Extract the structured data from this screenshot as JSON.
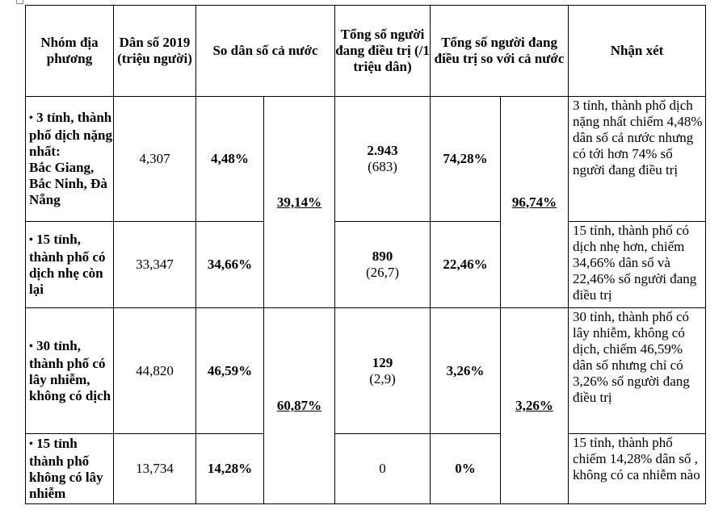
{
  "table": {
    "headers": {
      "group": "Nhóm địa phương",
      "population": "Dân số 2019 (triệu người)",
      "share": "So dân số cả nước",
      "treating": "Tổng số người đang điều trị (/1 triệu dân)",
      "treating_share": "Tổng số người đang điều trị so với cả nước",
      "comment": "Nhận xét"
    },
    "bullet": "•",
    "rows": [
      {
        "group_bold": "3 tỉnh, thành phố dịch nặng nhất:",
        "group_names": "Bắc Giang, Bắc Ninh, Đà Nẵng",
        "population": "4,307",
        "share": "4,48%",
        "treating": "2.943",
        "per_million": "(683)",
        "treating_share": "74,28%",
        "comment": "3 tỉnh, thành phố dịch nặng nhất chiếm 4,48% dân số cả nước nhưng có tới hơn 74% số người đang điều trị"
      },
      {
        "group_bold": "15 tỉnh, thành phố có dịch nhẹ còn lại",
        "population": "33,347",
        "share": "34,66%",
        "treating": "890",
        "per_million": "(26,7)",
        "treating_share": "22,46%",
        "comment": "15 tỉnh, thành phố có dịch nhẹ hơn, chiếm 34,66% dân số và 22,46% số người đang điều trị"
      },
      {
        "group_bold": "30 tỉnh, thành phố có lây nhiễm, không có dịch",
        "population": "44,820",
        "share": "46,59%",
        "treating": "129",
        "per_million": "(2,9)",
        "treating_share": "3,26%",
        "comment": "30 tỉnh, thành phố có lây nhiễm, không có dịch, chiếm 46,59% dân số nhưng chỉ có 3,26% số người đang điều trị"
      },
      {
        "group_bold": "15 tỉnh thành phố không có lây nhiễm",
        "population": "13,734",
        "share": "14,28%",
        "treating": "0",
        "treating_share": "0%",
        "comment": "15 tỉnh, thành phố chiếm 14,28% dân số , không có ca nhiễm nào"
      }
    ],
    "merged": {
      "share_top": "39,14%",
      "share_bottom": "60,87%",
      "treating_share_top": "96,74%",
      "treating_share_bottom": "3,26%"
    }
  }
}
